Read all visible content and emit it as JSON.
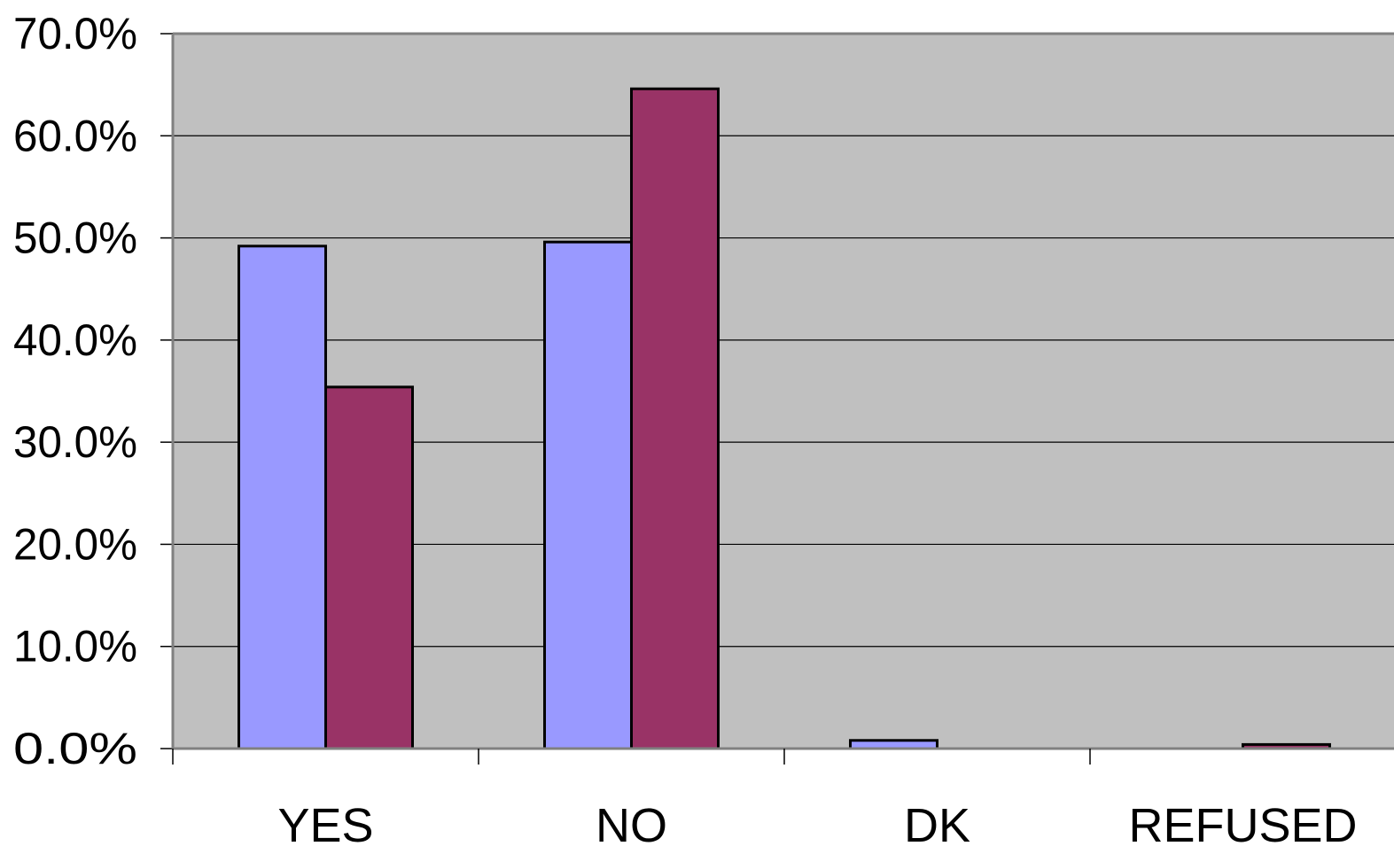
{
  "chart_data": {
    "type": "bar",
    "title": "",
    "xlabel": "",
    "ylabel": "",
    "categories": [
      "YES",
      "NO",
      "DK",
      "REFUSED"
    ],
    "series": [
      {
        "values": [
          49.2,
          49.6,
          0.8,
          0.0
        ],
        "color": "#9999ff"
      },
      {
        "values": [
          35.4,
          64.6,
          0.0,
          0.4
        ],
        "color": "#993366"
      }
    ],
    "ylim": [
      0,
      70
    ],
    "yticks": [
      0,
      10,
      20,
      30,
      40,
      50,
      60,
      70
    ],
    "ytick_labels": [
      "0.0%",
      "10.0%",
      "20.0%",
      "30.0%",
      "40.0%",
      "50.0%",
      "60.0%",
      "70.0%"
    ],
    "grid": true,
    "legend": "none",
    "plot_background": "#c0c0c0",
    "gridline_color": "#000000"
  }
}
